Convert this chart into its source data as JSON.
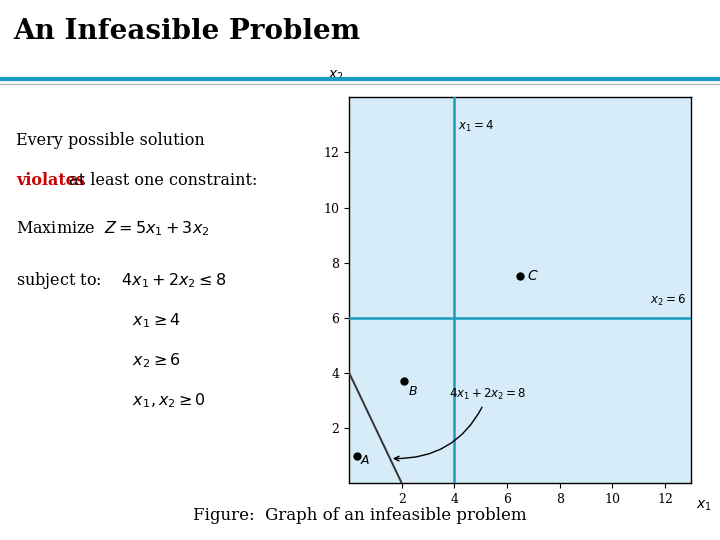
{
  "title": "An Infeasible Problem",
  "slide_bg": "#ffffff",
  "title_color": "#000000",
  "title_fontsize": 20,
  "title_bold": true,
  "divider_color1": "#1a9bbf",
  "divider_color2": "#b0b0b0",
  "caption": "Figure:  Graph of an infeasible problem",
  "caption_color": "#000000",
  "caption_fontsize": 12,
  "graph": {
    "bg_color": "#d6ecf8",
    "border_color": "#000000",
    "xlim": [
      0,
      13
    ],
    "ylim": [
      0,
      14
    ],
    "xticks": [
      2,
      4,
      6,
      8,
      10,
      12
    ],
    "yticks": [
      2,
      4,
      6,
      8,
      10,
      12
    ],
    "xlabel": "x1",
    "ylabel": "x2",
    "constraint_line_color": "#1a9bbf",
    "constraint_lw": 1.8,
    "obj_line_color": "#1a9bbf",
    "black_line_color": "#333333",
    "black_line_lw": 1.4,
    "point_A": [
      0.3,
      1.0
    ],
    "point_B": [
      2.1,
      3.7
    ],
    "point_C": [
      6.5,
      7.5
    ],
    "point_color": "#000000",
    "point_size": 5
  }
}
